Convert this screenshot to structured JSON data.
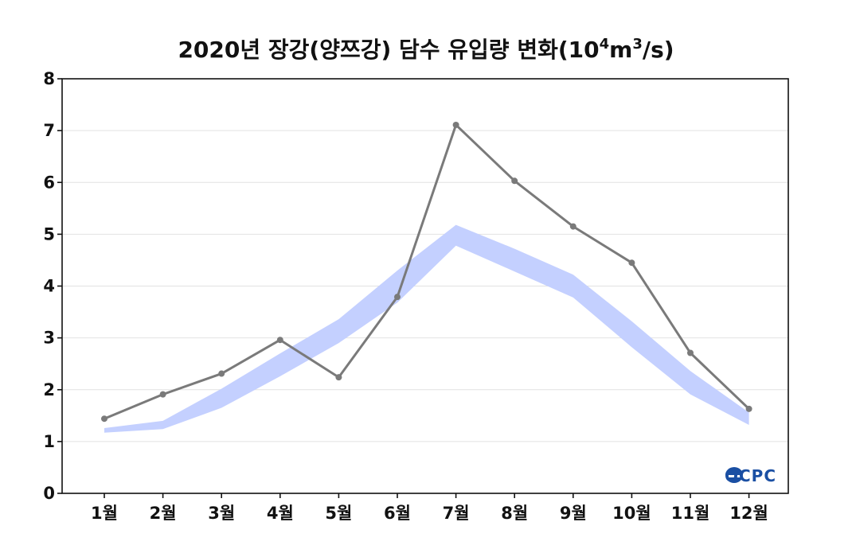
{
  "chart_data": {
    "type": "line",
    "title": {
      "main": "2020년 장강(양쯔강) 담수 유입량 변화(10",
      "exp1": "4",
      "mid": "m",
      "exp2": "3",
      "end": "/s)"
    },
    "categories": [
      "1월",
      "2월",
      "3월",
      "4월",
      "5월",
      "6월",
      "7월",
      "8월",
      "9월",
      "10월",
      "11월",
      "12월"
    ],
    "ylim": [
      0,
      8
    ],
    "yticks": [
      "0",
      "1",
      "2",
      "3",
      "4",
      "5",
      "6",
      "7",
      "8"
    ],
    "grid": true,
    "series": [
      {
        "kind": "line",
        "color": "#7a7a7a",
        "values": [
          1.44,
          1.91,
          2.31,
          2.96,
          2.24,
          3.79,
          7.11,
          6.03,
          5.15,
          4.45,
          2.71,
          1.63
        ]
      },
      {
        "kind": "band",
        "color": "#c4d0ff",
        "lower": [
          1.17,
          1.24,
          1.65,
          2.26,
          2.9,
          3.68,
          4.78,
          4.28,
          3.78,
          2.82,
          1.91,
          1.32
        ],
        "upper": [
          1.26,
          1.4,
          2.02,
          2.7,
          3.36,
          4.3,
          5.18,
          4.72,
          4.22,
          3.32,
          2.36,
          1.56
        ]
      }
    ]
  },
  "logo": {
    "text": "OCPC",
    "colors": [
      "#1a4fa3",
      "#3f8fd6"
    ]
  }
}
